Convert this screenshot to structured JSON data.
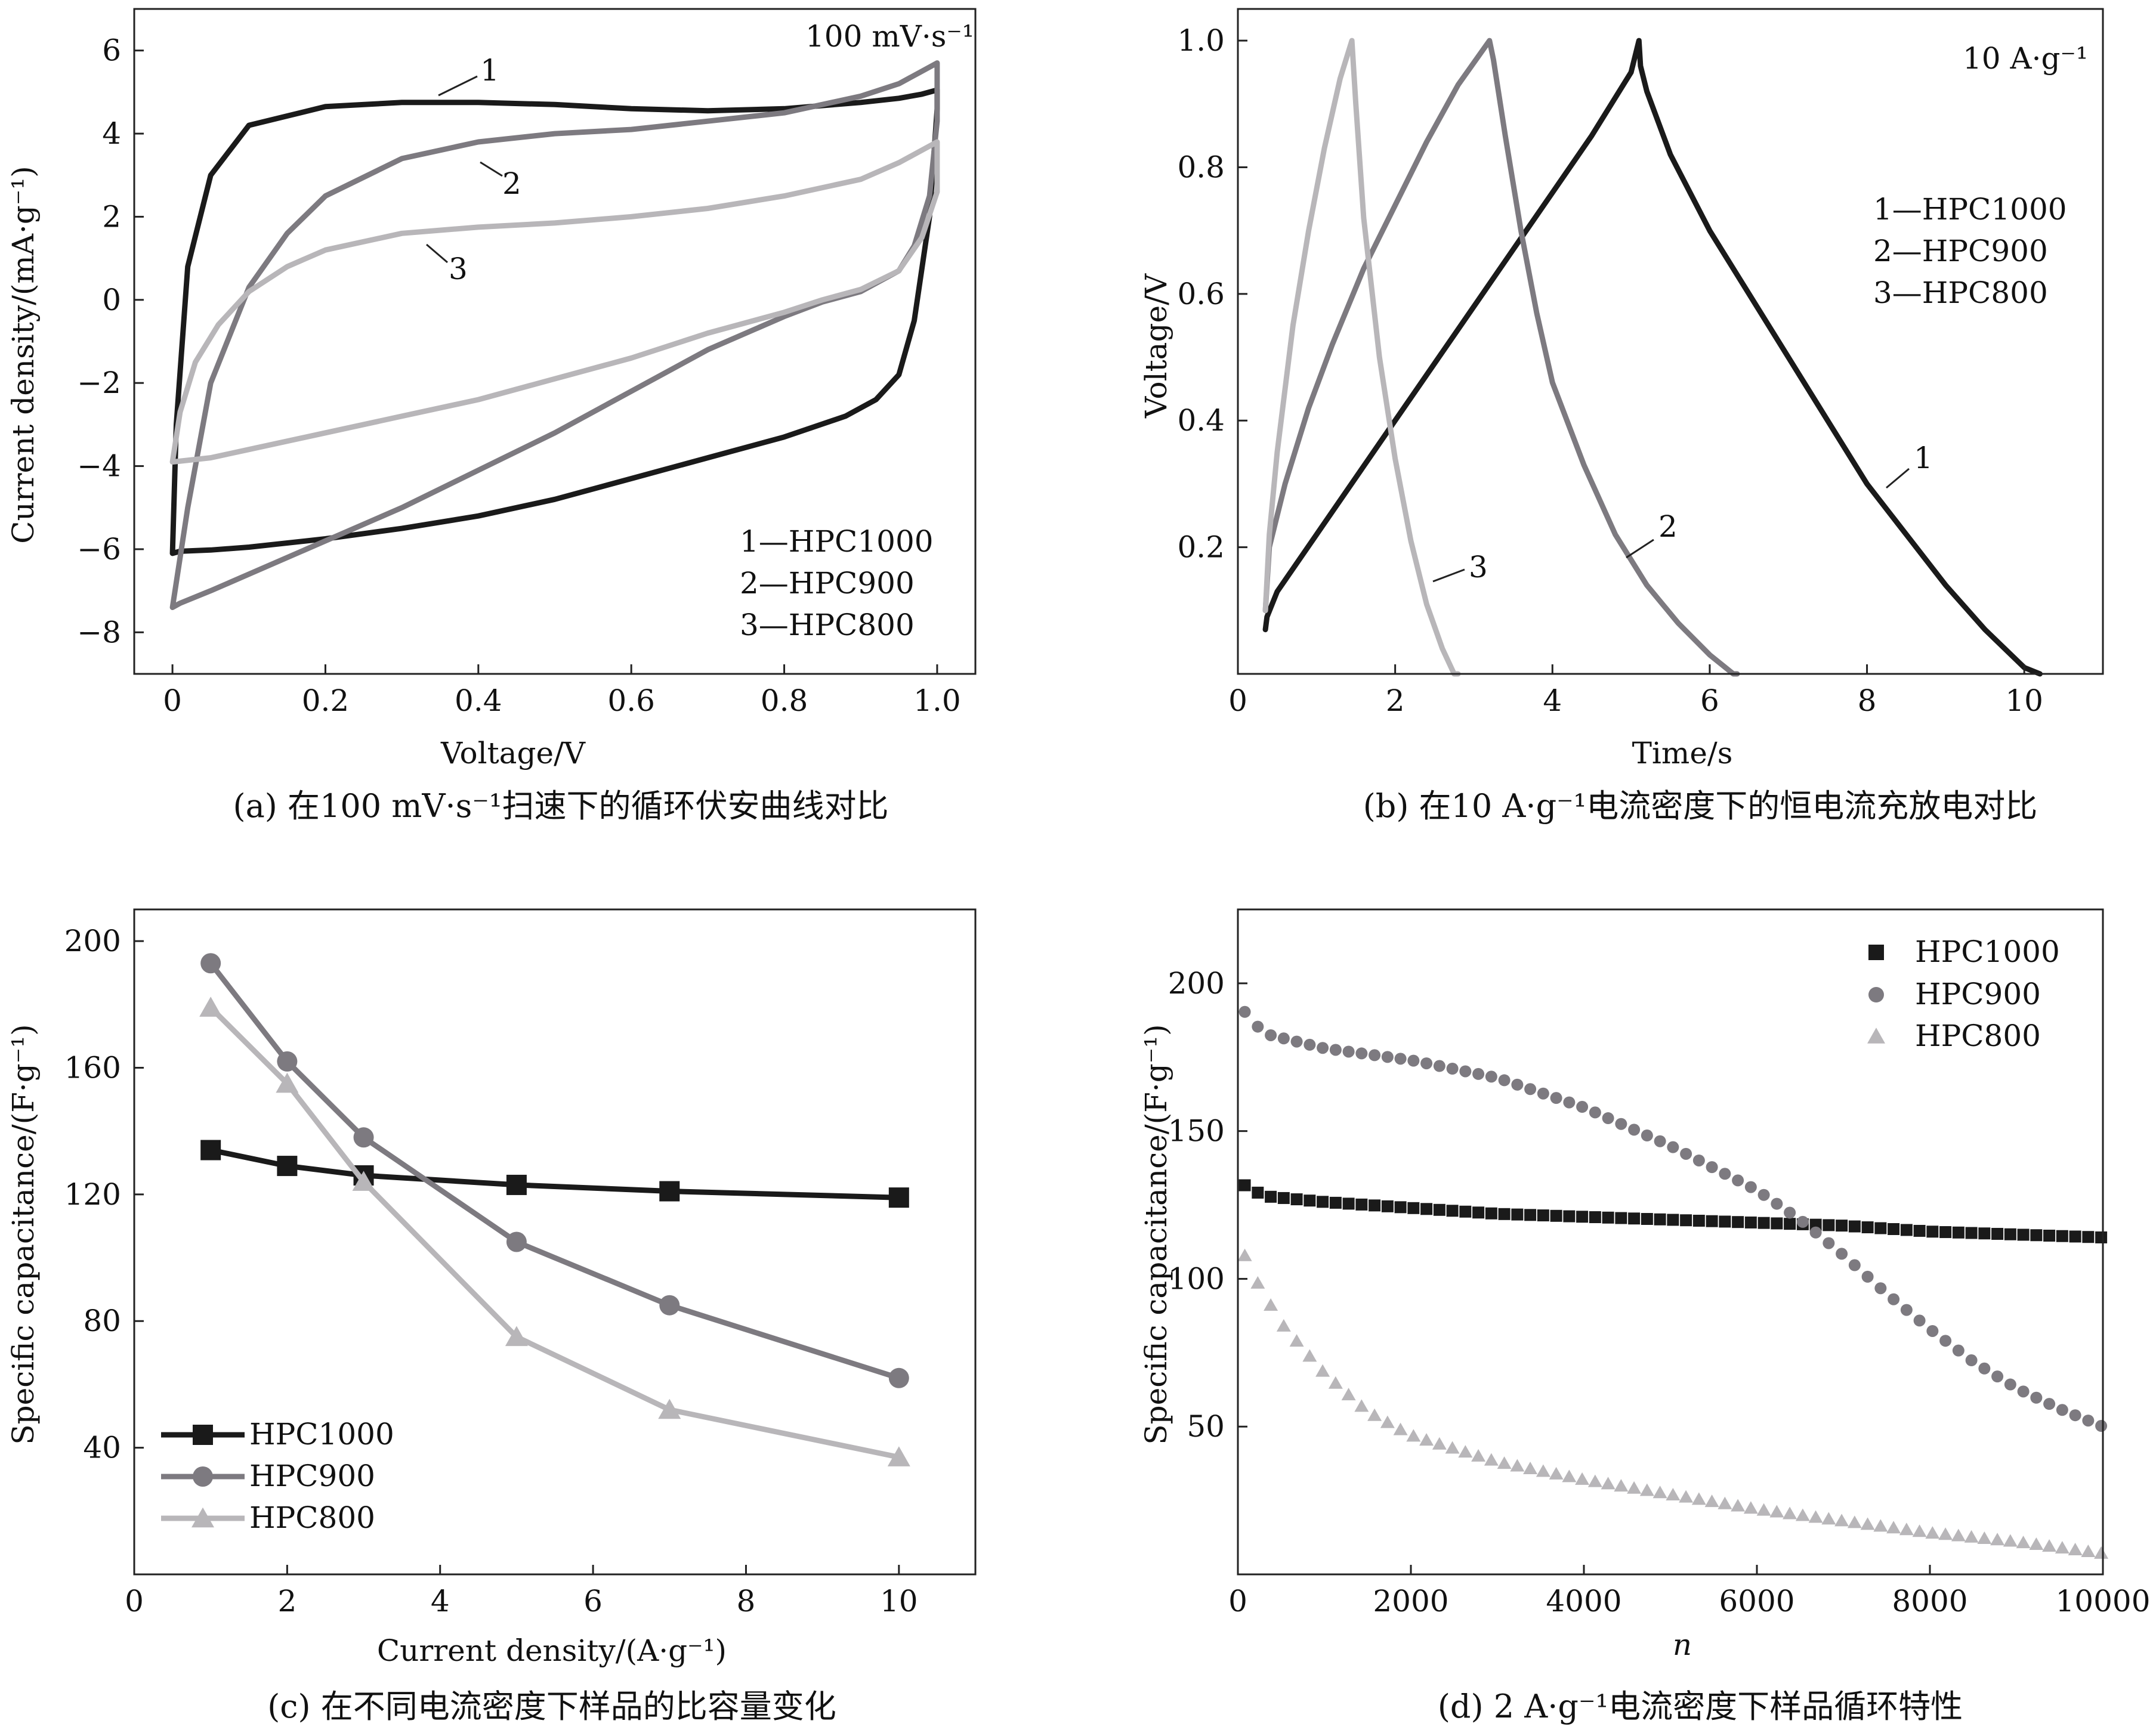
{
  "chart_data": [
    {
      "panel": "a",
      "type": "line",
      "caption": "(a) 在100 mV·s⁻¹扫速下的循环伏安曲线对比",
      "annotation": "100 mV·s⁻¹",
      "xlabel": "Voltage/V",
      "ylabel": "Current density/(mA·g⁻¹)",
      "xlim": [
        -0.05,
        1.05
      ],
      "ylim": [
        -9,
        7
      ],
      "xticks": [
        0,
        0.2,
        0.4,
        0.6,
        0.8,
        1.0
      ],
      "xtick_labels": [
        "0",
        "0.2",
        "0.4",
        "0.6",
        "0.8",
        "1.0"
      ],
      "yticks": [
        -8,
        -6,
        -4,
        -2,
        0,
        2,
        4,
        6
      ],
      "ytick_labels": [
        "−8",
        "−6",
        "−4",
        "−2",
        "0",
        "2",
        "4",
        "6"
      ],
      "legend": [
        "1—HPC1000",
        "2—HPC900",
        "3—HPC800"
      ],
      "curve_labels": [
        "1",
        "2",
        "3"
      ],
      "series": [
        {
          "name": "HPC1000",
          "label": "1",
          "color": "#1a1a1a",
          "x": [
            0,
            0.005,
            0.02,
            0.05,
            0.1,
            0.2,
            0.3,
            0.4,
            0.5,
            0.6,
            0.7,
            0.8,
            0.9,
            0.95,
            0.98,
            1.0,
            1.0,
            0.99,
            0.97,
            0.95,
            0.92,
            0.88,
            0.8,
            0.7,
            0.6,
            0.5,
            0.4,
            0.3,
            0.2,
            0.1,
            0.05,
            0.01,
            0
          ],
          "y": [
            -6.1,
            -3,
            0.8,
            3,
            4.2,
            4.65,
            4.75,
            4.75,
            4.7,
            4.6,
            4.55,
            4.6,
            4.75,
            4.85,
            4.95,
            5.05,
            4.6,
            2,
            -0.5,
            -1.8,
            -2.4,
            -2.8,
            -3.3,
            -3.8,
            -4.3,
            -4.8,
            -5.2,
            -5.5,
            -5.75,
            -5.95,
            -6.02,
            -6.05,
            -6.1
          ]
        },
        {
          "name": "HPC900",
          "label": "2",
          "color": "#7d7a80",
          "x": [
            0,
            0.02,
            0.05,
            0.1,
            0.15,
            0.2,
            0.3,
            0.4,
            0.5,
            0.6,
            0.7,
            0.8,
            0.9,
            0.95,
            1.0,
            1.0,
            0.99,
            0.97,
            0.95,
            0.9,
            0.85,
            0.8,
            0.7,
            0.6,
            0.5,
            0.4,
            0.3,
            0.2,
            0.1,
            0.05,
            0.01,
            0
          ],
          "y": [
            -7.4,
            -5,
            -2,
            0.3,
            1.6,
            2.5,
            3.4,
            3.8,
            4.0,
            4.1,
            4.3,
            4.5,
            4.9,
            5.2,
            5.7,
            4.3,
            2.5,
            1.3,
            0.7,
            0.2,
            -0.05,
            -0.4,
            -1.2,
            -2.2,
            -3.2,
            -4.1,
            -5.0,
            -5.8,
            -6.6,
            -7.0,
            -7.3,
            -7.4
          ]
        },
        {
          "name": "HPC800",
          "label": "3",
          "color": "#b8b6b9",
          "x": [
            0,
            0.01,
            0.03,
            0.06,
            0.1,
            0.15,
            0.2,
            0.3,
            0.4,
            0.5,
            0.6,
            0.7,
            0.8,
            0.9,
            0.95,
            1.0,
            1.0,
            0.98,
            0.95,
            0.9,
            0.85,
            0.8,
            0.7,
            0.6,
            0.5,
            0.4,
            0.3,
            0.2,
            0.1,
            0.05,
            0
          ],
          "y": [
            -3.9,
            -2.7,
            -1.5,
            -0.6,
            0.2,
            0.8,
            1.2,
            1.6,
            1.75,
            1.85,
            2.0,
            2.2,
            2.5,
            2.9,
            3.3,
            3.8,
            2.6,
            1.5,
            0.7,
            0.25,
            0.0,
            -0.3,
            -0.8,
            -1.4,
            -1.9,
            -2.4,
            -2.8,
            -3.2,
            -3.6,
            -3.8,
            -3.9
          ]
        }
      ]
    },
    {
      "panel": "b",
      "type": "line",
      "caption": "(b) 在10 A·g⁻¹电流密度下的恒电流充放电对比",
      "annotation": "10 A·g⁻¹",
      "xlabel": "Time/s",
      "ylabel": "Voltage/V",
      "xlim": [
        0,
        11
      ],
      "ylim": [
        0,
        1.05
      ],
      "xticks": [
        0,
        2,
        4,
        6,
        8,
        10
      ],
      "xtick_labels": [
        "0",
        "2",
        "4",
        "6",
        "8",
        "10"
      ],
      "yticks": [
        0.2,
        0.4,
        0.6,
        0.8,
        1.0
      ],
      "ytick_labels": [
        "0.2",
        "0.4",
        "0.6",
        "0.8",
        "1.0"
      ],
      "legend": [
        "1—HPC1000",
        "2—HPC900",
        "3—HPC800"
      ],
      "curve_labels": [
        "1",
        "2",
        "3"
      ],
      "series": [
        {
          "name": "HPC1000",
          "label": "1",
          "color": "#1a1a1a",
          "x": [
            0.35,
            0.37,
            0.5,
            1,
            1.5,
            2,
            2.5,
            3,
            3.5,
            4,
            4.5,
            5,
            5.1,
            5.12,
            5.2,
            5.5,
            6,
            6.5,
            7,
            7.5,
            8,
            8.5,
            9,
            9.5,
            10,
            10.2
          ],
          "y": [
            0.07,
            0.09,
            0.13,
            0.22,
            0.31,
            0.4,
            0.49,
            0.58,
            0.67,
            0.76,
            0.85,
            0.95,
            1.0,
            0.96,
            0.92,
            0.82,
            0.7,
            0.6,
            0.5,
            0.4,
            0.3,
            0.22,
            0.14,
            0.07,
            0.01,
            0.0
          ]
        },
        {
          "name": "HPC900",
          "label": "2",
          "color": "#7d7a80",
          "x": [
            0.35,
            0.4,
            0.6,
            0.9,
            1.2,
            1.6,
            2,
            2.4,
            2.8,
            3.2,
            3.25,
            3.4,
            3.6,
            3.8,
            4.0,
            4.4,
            4.8,
            5.2,
            5.6,
            6,
            6.3,
            6.35
          ],
          "y": [
            0.1,
            0.2,
            0.3,
            0.42,
            0.52,
            0.64,
            0.74,
            0.84,
            0.93,
            1.0,
            0.97,
            0.85,
            0.7,
            0.57,
            0.46,
            0.33,
            0.22,
            0.14,
            0.08,
            0.03,
            0.0,
            0.0
          ]
        },
        {
          "name": "HPC800",
          "label": "3",
          "color": "#b8b6b9",
          "x": [
            0.35,
            0.4,
            0.5,
            0.7,
            0.9,
            1.1,
            1.3,
            1.45,
            1.5,
            1.6,
            1.8,
            2.0,
            2.2,
            2.4,
            2.6,
            2.75,
            2.8
          ],
          "y": [
            0.1,
            0.22,
            0.35,
            0.55,
            0.7,
            0.83,
            0.94,
            1.0,
            0.9,
            0.72,
            0.5,
            0.34,
            0.21,
            0.11,
            0.04,
            0.0,
            0.0
          ]
        }
      ]
    },
    {
      "panel": "c",
      "type": "line",
      "caption": "(c) 在不同电流密度下样品的比容量变化",
      "xlabel": "Current density/(A·g⁻¹)",
      "ylabel": "Specific capacitance/(F·g⁻¹)",
      "xlim": [
        0,
        11
      ],
      "ylim": [
        0,
        210
      ],
      "xticks": [
        0,
        2,
        4,
        6,
        8,
        10
      ],
      "xtick_labels": [
        "0",
        "2",
        "4",
        "6",
        "8",
        "10"
      ],
      "yticks": [
        40,
        80,
        120,
        160,
        200
      ],
      "ytick_labels": [
        "40",
        "80",
        "120",
        "160",
        "200"
      ],
      "legend": [
        "HPC1000",
        "HPC900",
        "HPC800"
      ],
      "series": [
        {
          "name": "HPC1000",
          "marker": "square",
          "color": "#1a1a1a",
          "x": [
            1,
            2,
            3,
            5,
            7,
            10
          ],
          "y": [
            134,
            129,
            126,
            123,
            121,
            119
          ]
        },
        {
          "name": "HPC900",
          "marker": "circle",
          "color": "#7d7a80",
          "x": [
            1,
            2,
            3,
            5,
            7,
            10
          ],
          "y": [
            193,
            162,
            138,
            105,
            85,
            62
          ]
        },
        {
          "name": "HPC800",
          "marker": "triangle",
          "color": "#b8b6b9",
          "x": [
            1,
            2,
            3,
            5,
            7,
            10
          ],
          "y": [
            179,
            155,
            124,
            75,
            52,
            37
          ]
        }
      ]
    },
    {
      "panel": "d",
      "type": "scatter",
      "caption": "(d) 2 A·g⁻¹电流密度下样品循环特性",
      "xlabel": "n",
      "ylabel": "Specific capacitance/(F·g⁻¹)",
      "xlim": [
        0,
        10000
      ],
      "ylim": [
        0,
        225
      ],
      "xticks": [
        0,
        2000,
        4000,
        6000,
        8000,
        10000
      ],
      "xtick_labels": [
        "0",
        "2000",
        "4000",
        "6000",
        "8000",
        "10000"
      ],
      "yticks": [
        50,
        100,
        150,
        200
      ],
      "ytick_labels": [
        "50",
        "100",
        "150",
        "200"
      ],
      "legend": [
        "HPC1000",
        "HPC900",
        "HPC800"
      ],
      "series": [
        {
          "name": "HPC1000",
          "marker": "square",
          "color": "#1a1a1a",
          "x": [
            0,
            300,
            1000,
            2000,
            3000,
            4000,
            5000,
            6000,
            7000,
            8000,
            9000,
            10000
          ],
          "y": [
            133,
            128,
            126,
            124,
            122,
            121,
            120,
            119,
            118,
            116,
            115,
            114
          ]
        },
        {
          "name": "HPC900",
          "marker": "circle",
          "color": "#7d7a80",
          "x": [
            0,
            300,
            1000,
            2000,
            3000,
            4000,
            5000,
            6000,
            6500,
            7000,
            7500,
            8000,
            8500,
            9000,
            9500,
            10000
          ],
          "y": [
            193,
            183,
            178,
            174,
            168,
            158,
            145,
            130,
            120,
            108,
            95,
            83,
            72,
            63,
            56,
            50
          ]
        },
        {
          "name": "HPC800",
          "marker": "triangle",
          "color": "#b8b6b9",
          "x": [
            0,
            200,
            500,
            1000,
            1500,
            2000,
            3000,
            4000,
            5000,
            6000,
            7000,
            8000,
            9000,
            10000
          ],
          "y": [
            113,
            100,
            85,
            68,
            55,
            47,
            38,
            32,
            27,
            22,
            18,
            14,
            11,
            7
          ]
        }
      ]
    }
  ]
}
